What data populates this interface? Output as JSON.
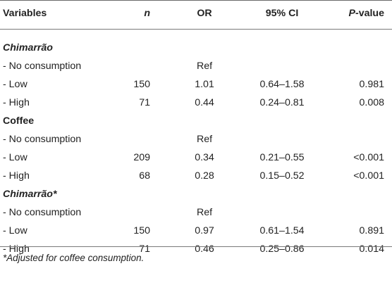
{
  "table": {
    "headers": {
      "variables": "Variables",
      "n": "n",
      "or": "OR",
      "ci": "95% CI",
      "p_italic": "P",
      "p_rest": "-value"
    },
    "rows": [
      {
        "type": "section",
        "italic": true,
        "label": "Chimarrão"
      },
      {
        "type": "data",
        "label": "- No consumption",
        "n": "",
        "or": "Ref",
        "ci": "",
        "p": ""
      },
      {
        "type": "data",
        "label": "- Low",
        "n": "150",
        "or": "1.01",
        "ci": "0.64–1.58",
        "p": "0.981"
      },
      {
        "type": "data",
        "label": "- High",
        "n": "71",
        "or": "0.44",
        "ci": "0.24–0.81",
        "p": "0.008"
      },
      {
        "type": "section",
        "italic": false,
        "label": "Coffee"
      },
      {
        "type": "data",
        "label": "- No consumption",
        "n": "",
        "or": "Ref",
        "ci": "",
        "p": ""
      },
      {
        "type": "data",
        "label": "- Low",
        "n": "209",
        "or": "0.34",
        "ci": "0.21–0.55",
        "p": "<0.001"
      },
      {
        "type": "data",
        "label": "- High",
        "n": "68",
        "or": "0.28",
        "ci": "0.15–0.52",
        "p": "<0.001"
      },
      {
        "type": "section",
        "italic": true,
        "label": "Chimarrão*"
      },
      {
        "type": "data",
        "label": "- No consumption",
        "n": "",
        "or": "Ref",
        "ci": "",
        "p": ""
      },
      {
        "type": "data",
        "label": "- Low",
        "n": "150",
        "or": "0.97",
        "ci": "0.61–1.54",
        "p": "0.891"
      },
      {
        "type": "data",
        "label": "- High",
        "n": "71",
        "or": "0.46",
        "ci": "0.25–0.86",
        "p": "0.014"
      }
    ],
    "footnote": "*Adjusted for coffee consumption."
  }
}
